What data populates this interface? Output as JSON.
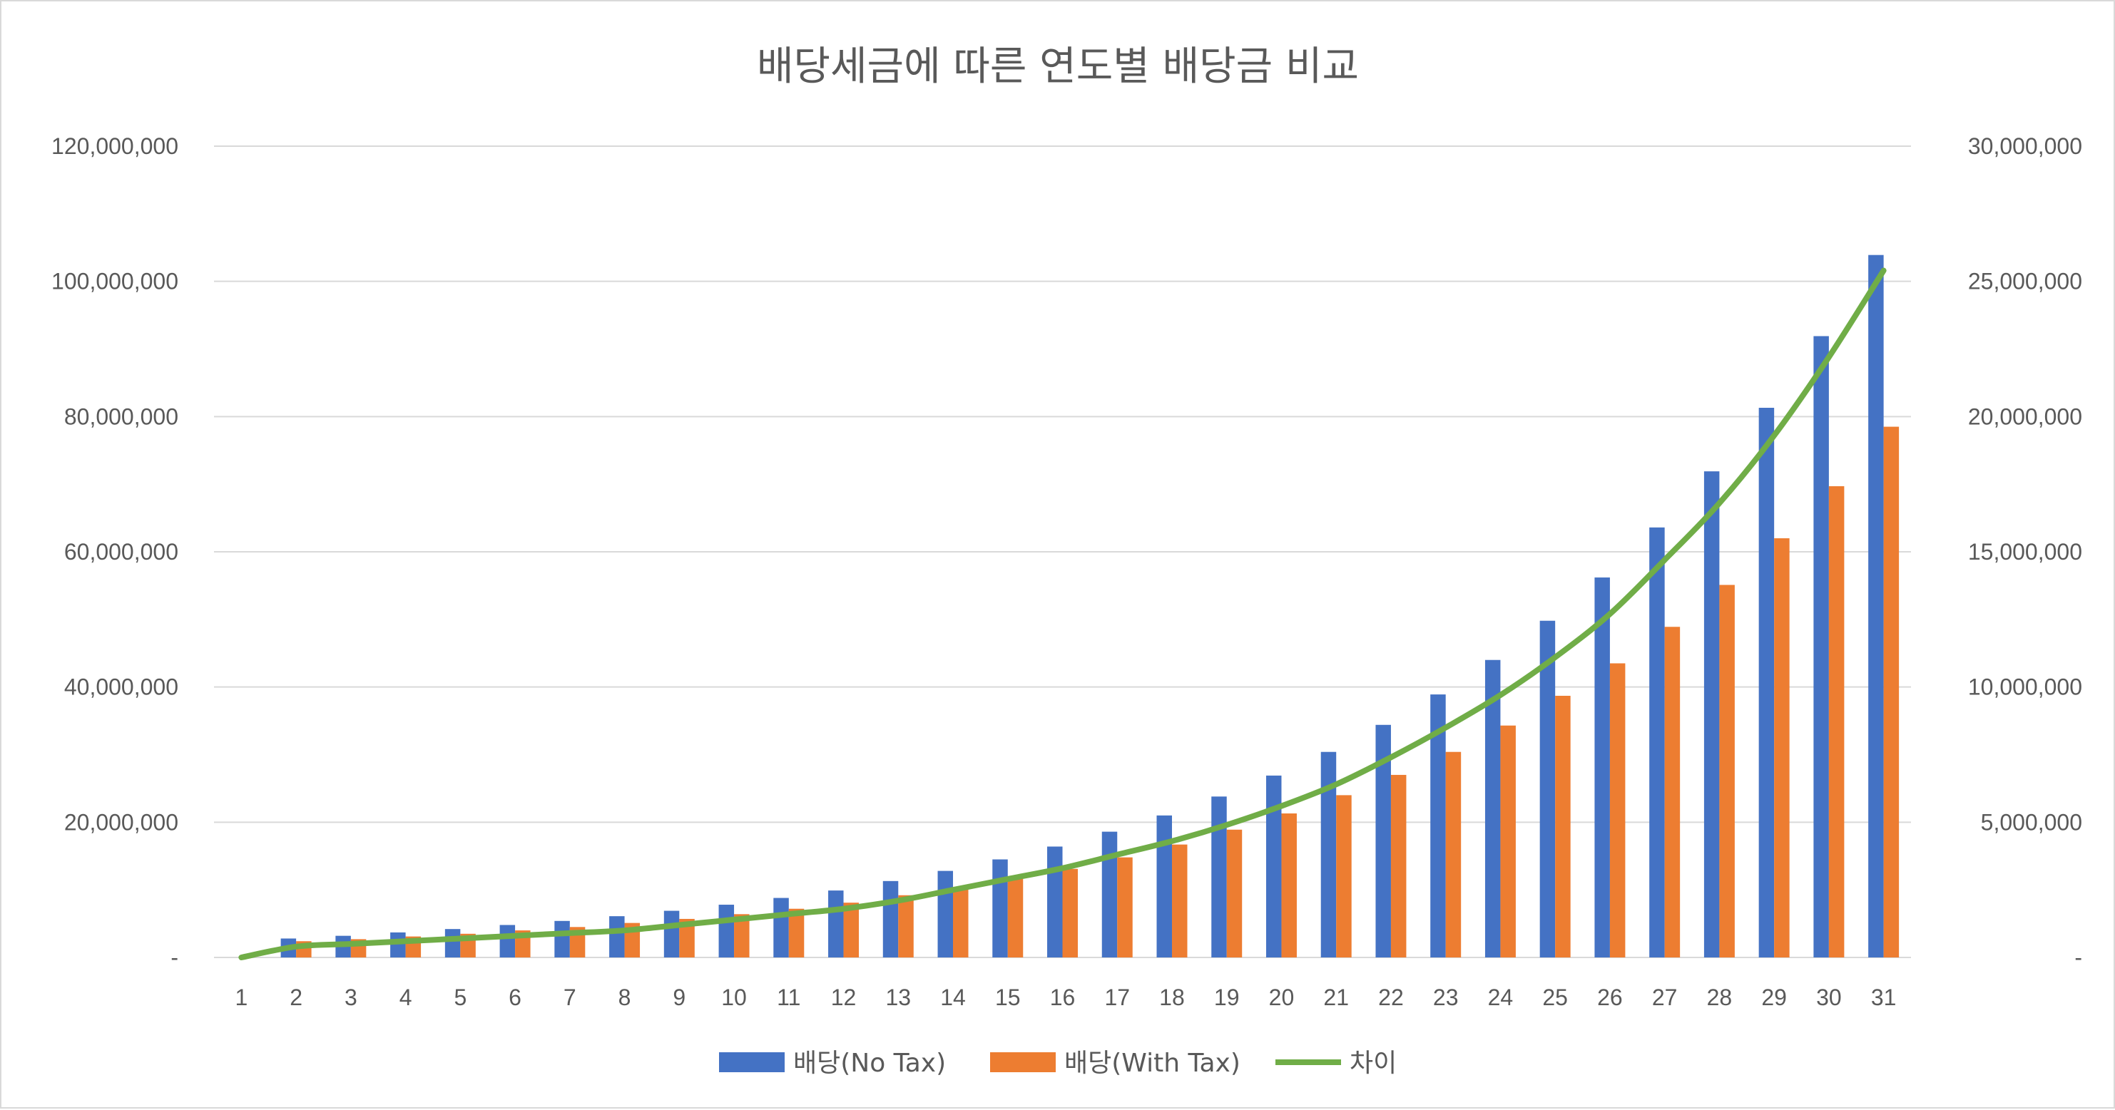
{
  "chart_data": {
    "type": "bar",
    "title": "배당세금에 따른 연도별 배당금 비교",
    "categories": [
      "1",
      "2",
      "3",
      "4",
      "5",
      "6",
      "7",
      "8",
      "9",
      "10",
      "11",
      "12",
      "13",
      "14",
      "15",
      "16",
      "17",
      "18",
      "19",
      "20",
      "21",
      "22",
      "23",
      "24",
      "25",
      "26",
      "27",
      "28",
      "29",
      "30",
      "31"
    ],
    "series": [
      {
        "name": "배당(No Tax)",
        "type": "bar",
        "axis": "left",
        "color": "#4472C4",
        "values": [
          0,
          2800000,
          3200000,
          3700000,
          4200000,
          4800000,
          5400000,
          6100000,
          6900000,
          7800000,
          8800000,
          9900000,
          11300000,
          12800000,
          14500000,
          16400000,
          18600000,
          21000000,
          23800000,
          26900000,
          30400000,
          34400000,
          38900000,
          44000000,
          49800000,
          56200000,
          63600000,
          71900000,
          81300000,
          91900000,
          103900000
        ]
      },
      {
        "name": "배당(With Tax)",
        "type": "bar",
        "axis": "left",
        "color": "#ED7D31",
        "values": [
          0,
          2400000,
          2700000,
          3100000,
          3500000,
          4000000,
          4500000,
          5100000,
          5700000,
          6400000,
          7200000,
          8100000,
          9200000,
          10300000,
          11600000,
          13100000,
          14800000,
          16700000,
          18900000,
          21300000,
          24000000,
          27000000,
          30400000,
          34300000,
          38700000,
          43500000,
          48900000,
          55100000,
          62000000,
          69700000,
          78500000
        ]
      },
      {
        "name": "차이",
        "type": "line",
        "axis": "right",
        "color": "#70AD47",
        "values": [
          0,
          400000,
          500000,
          600000,
          700000,
          800000,
          900000,
          1000000,
          1200000,
          1400000,
          1600000,
          1800000,
          2100000,
          2500000,
          2900000,
          3300000,
          3800000,
          4300000,
          4900000,
          5600000,
          6400000,
          7400000,
          8500000,
          9700000,
          11100000,
          12700000,
          14700000,
          16800000,
          19300000,
          22200000,
          25400000
        ]
      }
    ],
    "y_left": {
      "min": 0,
      "max": 120000000,
      "ticks": [
        0,
        20000000,
        40000000,
        60000000,
        80000000,
        100000000,
        120000000
      ],
      "tick_labels": [
        "-",
        "20,000,000",
        "40,000,000",
        "60,000,000",
        "80,000,000",
        "100,000,000",
        "120,000,000"
      ]
    },
    "y_right": {
      "min": 0,
      "max": 30000000,
      "ticks": [
        0,
        5000000,
        10000000,
        15000000,
        20000000,
        25000000,
        30000000
      ],
      "tick_labels": [
        "-",
        "5,000,000",
        "10,000,000",
        "15,000,000",
        "20,000,000",
        "25,000,000",
        "30,000,000"
      ]
    },
    "grid": true,
    "legend_position": "bottom"
  }
}
